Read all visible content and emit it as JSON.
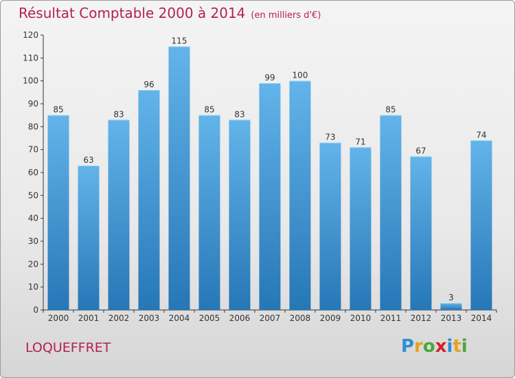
{
  "title": "Résultat Comptable 2000 à 2014",
  "subtitle": "(en milliers d'€)",
  "commune": "LOQUEFFRET",
  "logo": {
    "letters": [
      "P",
      "r",
      "o",
      "x",
      "i",
      "t",
      "i"
    ],
    "colors": [
      "#2b8fd6",
      "#e8a21b",
      "#46a83a",
      "#d4212a",
      "#2b8fd6",
      "#e8a21b",
      "#46a83a"
    ]
  },
  "colors": {
    "bar_top": "#62b4ea",
    "bar_bottom": "#2677b6",
    "title": "#b5214d"
  },
  "chart_data": {
    "type": "bar",
    "categories": [
      "2000",
      "2001",
      "2002",
      "2003",
      "2004",
      "2005",
      "2006",
      "2007",
      "2008",
      "2009",
      "2010",
      "2011",
      "2012",
      "2013",
      "2014"
    ],
    "values": [
      85,
      63,
      83,
      96,
      115,
      85,
      83,
      99,
      100,
      73,
      71,
      85,
      67,
      3,
      74
    ],
    "yticks": [
      0,
      10,
      20,
      30,
      40,
      50,
      60,
      70,
      80,
      90,
      100,
      110,
      120
    ],
    "ylim": [
      0,
      120
    ],
    "grid": false,
    "title": "Résultat Comptable 2000 à 2014",
    "xlabel": "",
    "ylabel": ""
  }
}
